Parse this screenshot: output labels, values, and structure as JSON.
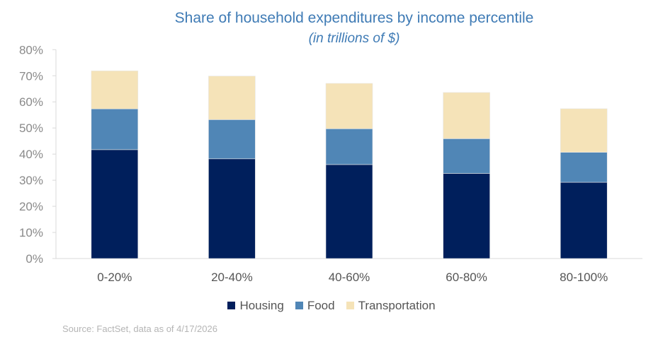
{
  "chart_data": {
    "type": "bar",
    "stacked": true,
    "title": "Share of household expenditures by income percentile",
    "subtitle": "(in trillions of $)",
    "categories": [
      "0-20%",
      "20-40%",
      "40-60%",
      "60-80%",
      "80-100%"
    ],
    "series": [
      {
        "name": "Housing",
        "color": "#001f5c",
        "values": [
          41.7,
          38.2,
          36.0,
          32.6,
          29.2
        ]
      },
      {
        "name": "Food",
        "color": "#5086b6",
        "values": [
          15.6,
          15.0,
          13.7,
          13.3,
          11.5
        ]
      },
      {
        "name": "Transportation",
        "color": "#f5e3b8",
        "values": [
          14.6,
          16.7,
          17.4,
          17.7,
          16.7
        ]
      }
    ],
    "ylim": [
      0,
      80
    ],
    "yticks": [
      "0%",
      "10%",
      "20%",
      "30%",
      "40%",
      "50%",
      "60%",
      "70%",
      "80%"
    ],
    "grid": false,
    "legend": "bottom",
    "source": "Source: FactSet, data as of 4/17/2026"
  }
}
